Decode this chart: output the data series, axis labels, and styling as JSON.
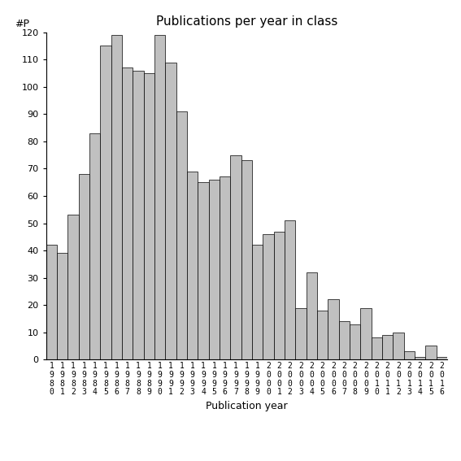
{
  "title": "Publications per year in class",
  "xlabel": "Publication year",
  "ylabel": "#P",
  "bar_color": "#c0c0c0",
  "edge_color": "#000000",
  "background_color": "#ffffff",
  "ylim": [
    0,
    120
  ],
  "yticks": [
    0,
    10,
    20,
    30,
    40,
    50,
    60,
    70,
    80,
    90,
    100,
    110,
    120
  ],
  "years": [
    1980,
    1981,
    1982,
    1983,
    1984,
    1985,
    1986,
    1987,
    1988,
    1989,
    1990,
    1991,
    1992,
    1993,
    1994,
    1995,
    1996,
    1997,
    1998,
    1999,
    2000,
    2001,
    2002,
    2003,
    2004,
    2005,
    2006,
    2007,
    2008,
    2009,
    2010,
    2011,
    2012,
    2013,
    2014,
    2015,
    2016
  ],
  "values": [
    42,
    39,
    53,
    68,
    83,
    115,
    119,
    107,
    106,
    105,
    119,
    109,
    91,
    69,
    65,
    66,
    67,
    75,
    73,
    42,
    46,
    47,
    51,
    19,
    32,
    18,
    22,
    14,
    13,
    19,
    8,
    9,
    10,
    3,
    1,
    5,
    1
  ],
  "title_fontsize": 11,
  "tick_fontsize": 7,
  "ytick_fontsize": 8,
  "xlabel_fontsize": 9
}
